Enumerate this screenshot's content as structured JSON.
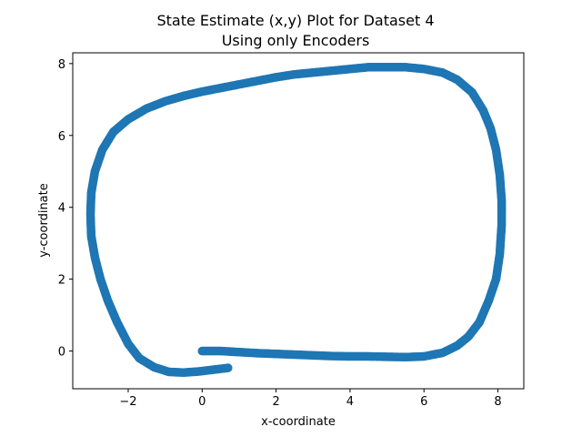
{
  "chart_data": {
    "type": "scatter",
    "title_line1": "State Estimate (x,y) Plot for Dataset 4",
    "title_line2": "Using only Encoders",
    "xlabel": "x-coordinate",
    "ylabel": "y-coordinate",
    "xlim": [
      -3.5,
      8.7
    ],
    "ylim": [
      -1.05,
      8.3
    ],
    "xticks": [
      {
        "value": -2,
        "label": "−2"
      },
      {
        "value": 0,
        "label": "0"
      },
      {
        "value": 2,
        "label": "2"
      },
      {
        "value": 4,
        "label": "4"
      },
      {
        "value": 6,
        "label": "6"
      },
      {
        "value": 8,
        "label": "8"
      }
    ],
    "yticks": [
      {
        "value": 0,
        "label": "0"
      },
      {
        "value": 2,
        "label": "2"
      },
      {
        "value": 4,
        "label": "4"
      },
      {
        "value": 6,
        "label": "6"
      },
      {
        "value": 8,
        "label": "8"
      }
    ],
    "grid": false,
    "marker_color": "#1f77b4",
    "series": [
      {
        "points": [
          [
            0.0,
            0.0
          ],
          [
            0.5,
            0.0
          ],
          [
            1.0,
            -0.03
          ],
          [
            1.5,
            -0.06
          ],
          [
            2.0,
            -0.08
          ],
          [
            2.5,
            -0.1
          ],
          [
            3.0,
            -0.12
          ],
          [
            3.5,
            -0.14
          ],
          [
            4.0,
            -0.15
          ],
          [
            4.5,
            -0.15
          ],
          [
            5.0,
            -0.16
          ],
          [
            5.5,
            -0.17
          ],
          [
            6.0,
            -0.15
          ],
          [
            6.5,
            -0.05
          ],
          [
            6.9,
            0.15
          ],
          [
            7.2,
            0.4
          ],
          [
            7.5,
            0.8
          ],
          [
            7.75,
            1.4
          ],
          [
            7.95,
            2.0
          ],
          [
            8.05,
            2.7
          ],
          [
            8.1,
            3.5
          ],
          [
            8.1,
            4.2
          ],
          [
            8.05,
            4.9
          ],
          [
            7.95,
            5.6
          ],
          [
            7.8,
            6.2
          ],
          [
            7.6,
            6.7
          ],
          [
            7.3,
            7.2
          ],
          [
            6.9,
            7.55
          ],
          [
            6.5,
            7.75
          ],
          [
            6.0,
            7.85
          ],
          [
            5.5,
            7.9
          ],
          [
            5.0,
            7.9
          ],
          [
            4.5,
            7.9
          ],
          [
            4.0,
            7.85
          ],
          [
            3.5,
            7.8
          ],
          [
            3.0,
            7.75
          ],
          [
            2.5,
            7.7
          ],
          [
            2.0,
            7.62
          ],
          [
            1.5,
            7.52
          ],
          [
            1.0,
            7.42
          ],
          [
            0.5,
            7.32
          ],
          [
            0.0,
            7.22
          ],
          [
            -0.5,
            7.1
          ],
          [
            -1.0,
            6.95
          ],
          [
            -1.5,
            6.75
          ],
          [
            -2.0,
            6.45
          ],
          [
            -2.4,
            6.1
          ],
          [
            -2.7,
            5.6
          ],
          [
            -2.9,
            5.0
          ],
          [
            -3.0,
            4.4
          ],
          [
            -3.02,
            3.8
          ],
          [
            -3.0,
            3.2
          ],
          [
            -2.9,
            2.6
          ],
          [
            -2.75,
            2.0
          ],
          [
            -2.55,
            1.4
          ],
          [
            -2.3,
            0.8
          ],
          [
            -2.0,
            0.2
          ],
          [
            -1.7,
            -0.2
          ],
          [
            -1.3,
            -0.45
          ],
          [
            -0.9,
            -0.58
          ],
          [
            -0.5,
            -0.6
          ],
          [
            -0.1,
            -0.57
          ],
          [
            0.3,
            -0.52
          ],
          [
            0.7,
            -0.47
          ]
        ]
      }
    ]
  }
}
